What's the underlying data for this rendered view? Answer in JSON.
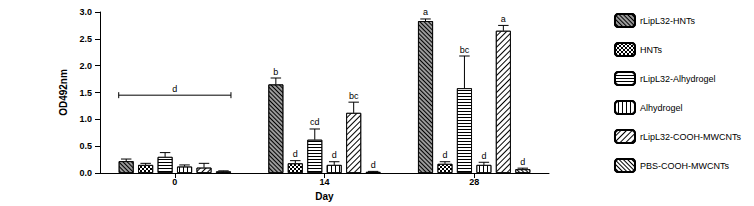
{
  "chart_data": {
    "type": "bar",
    "x_label": "Day",
    "y_label": "OD492nm",
    "categories": [
      "0",
      "14",
      "28"
    ],
    "ylim": [
      0,
      3
    ],
    "yticks": [
      {
        "value": 0,
        "label": "0.0"
      },
      {
        "value": 0.5,
        "label": "0.5"
      },
      {
        "value": 1,
        "label": "1.0"
      },
      {
        "value": 1.5,
        "label": "1.5"
      },
      {
        "value": 2,
        "label": "2.0"
      },
      {
        "value": 2.5,
        "label": "2.5"
      },
      {
        "value": 3,
        "label": "3.0"
      }
    ],
    "grid": false,
    "legend": "right",
    "series": [
      {
        "name": "rLipL32-HNTs",
        "color": "#9a9a9a",
        "values": [
          0.22,
          1.65,
          2.83
        ],
        "errors": [
          0.04,
          0.12,
          0.04
        ],
        "letters": [
          null,
          "b",
          "a"
        ]
      },
      {
        "name": "HNTs",
        "color": "#ffffff",
        "values": [
          0.15,
          0.18,
          0.17
        ],
        "errors": [
          0.03,
          0.05,
          0.04
        ],
        "letters": [
          null,
          "d",
          "d"
        ]
      },
      {
        "name": "rLipL32-Alhydrogel",
        "color": "#ffffff",
        "values": [
          0.3,
          0.62,
          1.58
        ],
        "errors": [
          0.08,
          0.2,
          0.6
        ],
        "letters": [
          null,
          "cd",
          "bc"
        ]
      },
      {
        "name": "Alhydrogel",
        "color": "#ffffff",
        "values": [
          0.12,
          0.15,
          0.15
        ],
        "errors": [
          0.03,
          0.06,
          0.05
        ],
        "letters": [
          null,
          "d",
          "d"
        ]
      },
      {
        "name": "rLipL32-COOH-MWCNTs",
        "color": "#ffffff",
        "values": [
          0.1,
          1.12,
          2.65
        ],
        "errors": [
          0.08,
          0.2,
          0.1
        ],
        "letters": [
          null,
          "bc",
          "a"
        ]
      },
      {
        "name": "PBS-COOH-MWCNTs",
        "color": "#ffffff",
        "values": [
          0.03,
          0.02,
          0.07
        ],
        "errors": [
          0.01,
          0.01,
          0.02
        ],
        "letters": [
          null,
          "d",
          "d"
        ]
      }
    ],
    "annotations": [
      {
        "text": "d",
        "category": "0",
        "y": 1.45
      }
    ]
  }
}
